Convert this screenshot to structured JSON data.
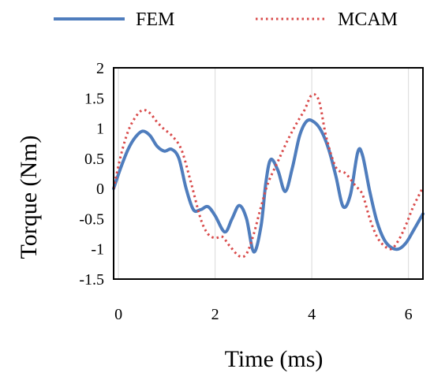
{
  "chart_data": {
    "type": "line",
    "title": "",
    "xlabel": "Time (ms)",
    "ylabel": "Torque (Nm)",
    "xlim": [
      -0.1,
      6.3
    ],
    "ylim": [
      -1.5,
      2
    ],
    "x_ticks": [
      0,
      2,
      4,
      6
    ],
    "y_ticks": [
      2,
      1.5,
      1,
      0.5,
      0,
      -0.5,
      -1,
      -1.5
    ],
    "x_tick_labels": [
      "0",
      "2",
      "4",
      "6"
    ],
    "y_tick_labels": [
      "2",
      "1.5",
      "1",
      "0.5",
      "0",
      "-0.5",
      "-1",
      "-1.5"
    ],
    "grid": {
      "vertical": true,
      "horizontal": false
    },
    "legend_position": "top",
    "series": [
      {
        "name": "FEM",
        "color": "#4F7DBD",
        "style": "solid",
        "x": [
          -0.1,
          0.05,
          0.2,
          0.35,
          0.5,
          0.65,
          0.8,
          0.95,
          1.1,
          1.25,
          1.4,
          1.55,
          1.7,
          1.85,
          2.0,
          2.2,
          2.35,
          2.5,
          2.65,
          2.8,
          2.95,
          3.05,
          3.15,
          3.3,
          3.45,
          3.6,
          3.75,
          3.9,
          4.05,
          4.2,
          4.35,
          4.5,
          4.65,
          4.8,
          4.95,
          5.05,
          5.2,
          5.35,
          5.5,
          5.65,
          5.8,
          5.95,
          6.1,
          6.3
        ],
        "y": [
          0.0,
          0.35,
          0.65,
          0.85,
          0.95,
          0.88,
          0.7,
          0.62,
          0.65,
          0.5,
          0.0,
          -0.35,
          -0.35,
          -0.3,
          -0.45,
          -0.72,
          -0.5,
          -0.28,
          -0.5,
          -1.05,
          -0.62,
          0.1,
          0.48,
          0.3,
          -0.05,
          0.35,
          0.88,
          1.12,
          1.1,
          0.95,
          0.65,
          0.2,
          -0.3,
          -0.1,
          0.6,
          0.55,
          -0.05,
          -0.55,
          -0.85,
          -0.98,
          -1.0,
          -0.9,
          -0.7,
          -0.42
        ]
      },
      {
        "name": "MCAM",
        "color": "#D94B4B",
        "style": "dotted",
        "x": [
          -0.1,
          0.05,
          0.2,
          0.35,
          0.5,
          0.65,
          0.8,
          0.95,
          1.1,
          1.3,
          1.5,
          1.7,
          1.85,
          2.0,
          2.15,
          2.3,
          2.5,
          2.65,
          2.8,
          2.95,
          3.1,
          3.3,
          3.5,
          3.7,
          3.85,
          4.0,
          4.15,
          4.3,
          4.5,
          4.7,
          4.9,
          5.05,
          5.2,
          5.35,
          5.5,
          5.65,
          5.8,
          5.95,
          6.1,
          6.3
        ],
        "y": [
          0.0,
          0.55,
          0.95,
          1.18,
          1.3,
          1.25,
          1.1,
          0.98,
          0.88,
          0.65,
          0.1,
          -0.5,
          -0.75,
          -0.82,
          -0.8,
          -0.95,
          -1.12,
          -1.08,
          -0.75,
          -0.3,
          0.1,
          0.45,
          0.8,
          1.1,
          1.3,
          1.55,
          1.45,
          0.85,
          0.35,
          0.25,
          0.05,
          -0.1,
          -0.5,
          -0.8,
          -0.95,
          -1.0,
          -0.85,
          -0.6,
          -0.3,
          0.02
        ]
      }
    ]
  }
}
